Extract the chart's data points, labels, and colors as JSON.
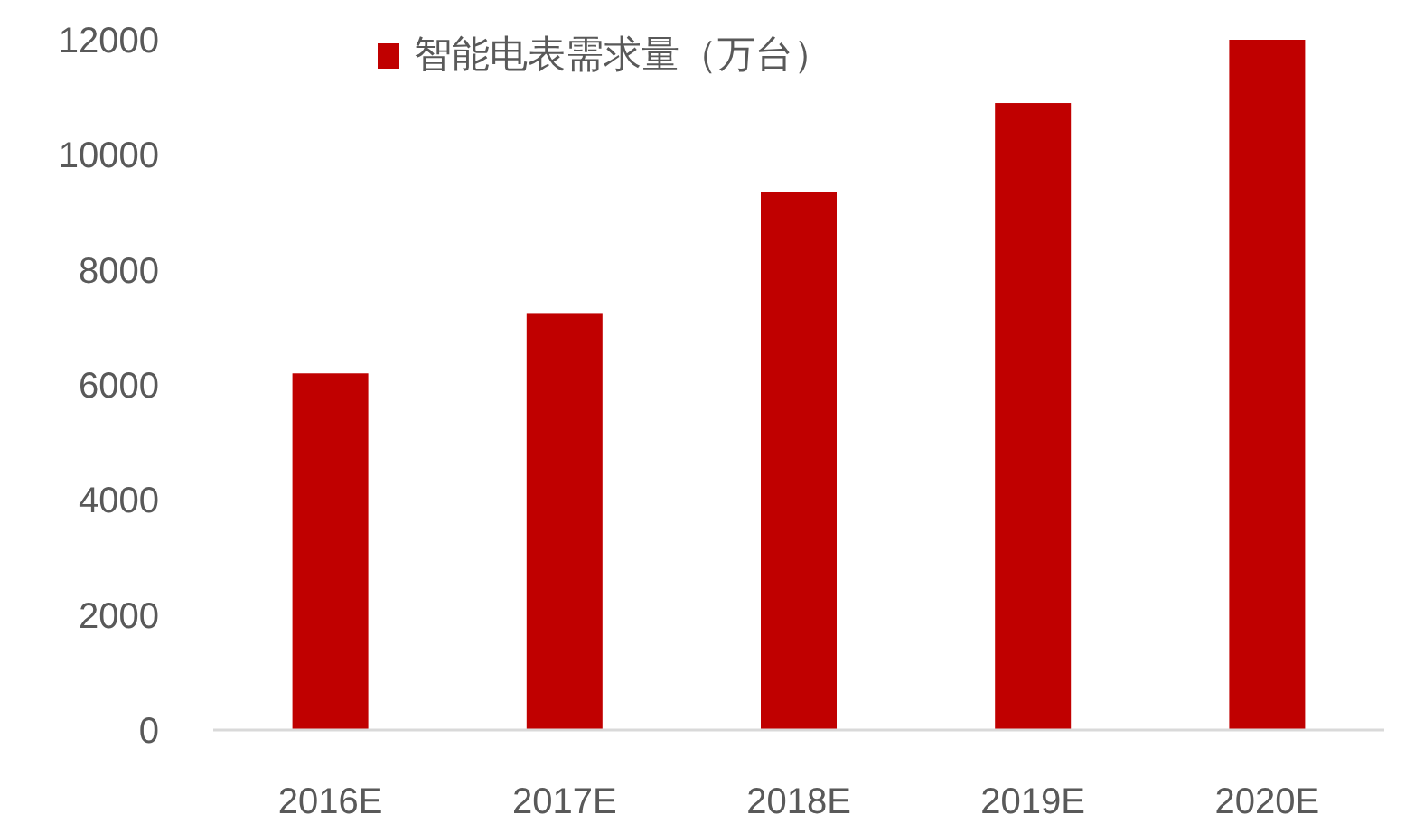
{
  "chart_data": {
    "type": "bar",
    "categories": [
      "2016E",
      "2017E",
      "2018E",
      "2019E",
      "2020E"
    ],
    "series": [
      {
        "name": "智能电表需求量（万台）",
        "color": "#c00000",
        "values": [
          6200,
          7250,
          9350,
          10900,
          12000
        ]
      }
    ],
    "ylim": [
      0,
      12000
    ],
    "yticks": [
      0,
      2000,
      4000,
      6000,
      8000,
      10000,
      12000
    ],
    "grid": false,
    "legend": "top"
  }
}
